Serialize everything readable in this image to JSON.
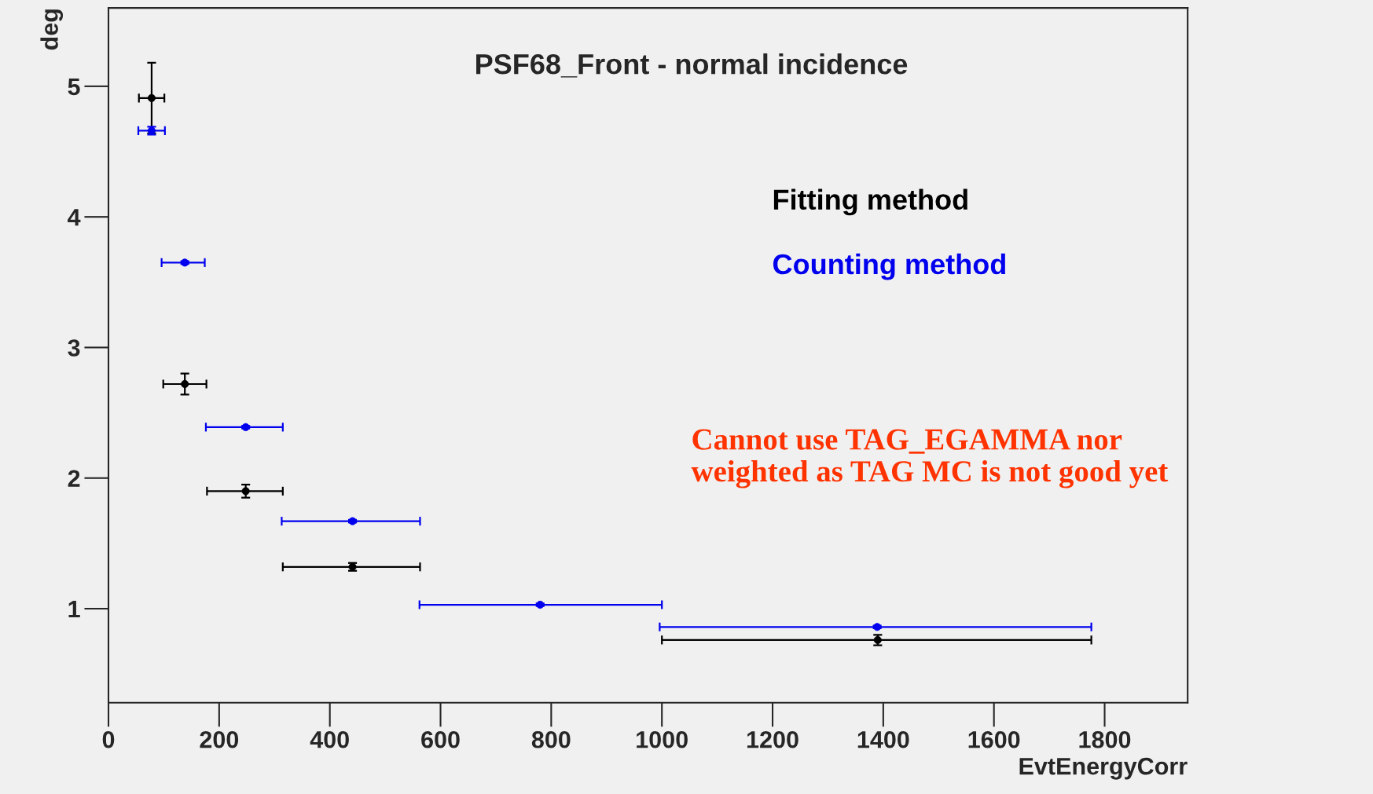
{
  "chart_data": {
    "type": "scatter",
    "title": "PSF68_Front - normal incidence",
    "xlabel": "EvtEnergyCorr",
    "ylabel": "deg",
    "xlim": [
      0,
      1950
    ],
    "ylim": [
      0.28,
      5.6
    ],
    "xticks": [
      0,
      200,
      400,
      600,
      800,
      1000,
      1200,
      1400,
      1600,
      1800
    ],
    "yticks": [
      1,
      2,
      3,
      4,
      5
    ],
    "grid": false,
    "marker": "circle",
    "legend": false,
    "series": [
      {
        "name": "Fitting method",
        "color": "#000000",
        "x": [
          78,
          138,
          248,
          441,
          1390
        ],
        "values": [
          4.91,
          2.72,
          1.9,
          1.32,
          0.76
        ],
        "errors": [
          0.27,
          0.08,
          0.05,
          0.03,
          0.04
        ],
        "xerrors": [
          [
            55,
            101
          ],
          [
            99,
            177
          ],
          [
            178,
            315
          ],
          [
            315,
            563
          ],
          [
            1000,
            1776
          ]
        ]
      },
      {
        "name": "Counting method",
        "color": "#0000ee",
        "x": [
          78,
          138,
          248,
          441,
          780,
          1389
        ],
        "values": [
          4.66,
          3.65,
          2.39,
          1.67,
          1.03,
          0.86
        ],
        "errors": [
          0.03,
          0.01,
          0.01,
          0.01,
          0.01,
          0.01
        ],
        "xerrors": [
          [
            54,
            102
          ],
          [
            96,
            174
          ],
          [
            176,
            315
          ],
          [
            313,
            563
          ],
          [
            562,
            1000
          ],
          [
            996,
            1776
          ]
        ]
      }
    ],
    "annotations": [
      "Cannot use TAG_EGAMMA nor\nweighted as TAG MC is not good yet"
    ]
  }
}
